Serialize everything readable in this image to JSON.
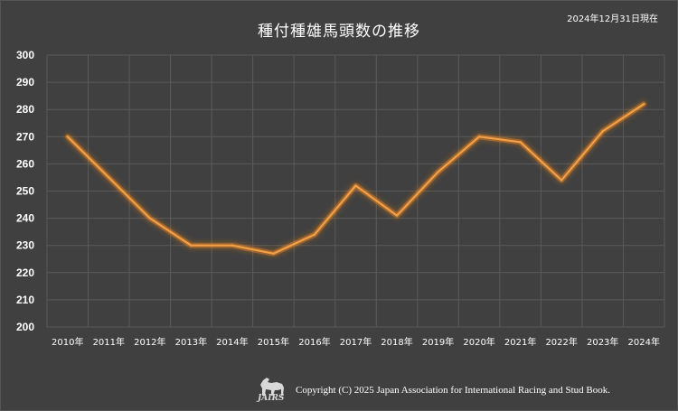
{
  "header": {
    "title": "種付種雄馬頭数の推移",
    "as_of": "2024年12月31日現在"
  },
  "footer": {
    "logo_text": "JAIRS",
    "copyright": "Copyright (C) 2025 Japan Association for International Racing and Stud Book."
  },
  "colors": {
    "background": "#404040",
    "grid": "#5a5a5a",
    "line": "#f2a045",
    "glow": "#ff8c1a",
    "text": "#ffffff"
  },
  "chart_data": {
    "type": "line",
    "title": "種付種雄馬頭数の推移",
    "categories": [
      "2010年",
      "2011年",
      "2012年",
      "2013年",
      "2014年",
      "2015年",
      "2016年",
      "2017年",
      "2018年",
      "2019年",
      "2020年",
      "2021年",
      "2022年",
      "2023年",
      "2024年"
    ],
    "series": [
      {
        "values": [
          270,
          255,
          240,
          230,
          230,
          227,
          234,
          252,
          241,
          257,
          270,
          268,
          254,
          272,
          282
        ]
      }
    ],
    "ylim": [
      200,
      300
    ],
    "yticks": [
      200,
      210,
      220,
      230,
      240,
      250,
      260,
      270,
      280,
      290,
      300
    ],
    "grid": true,
    "legend": "none"
  }
}
